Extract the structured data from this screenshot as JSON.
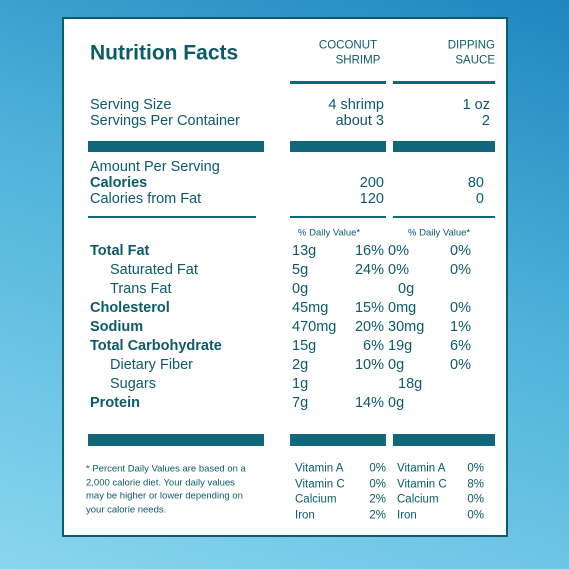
{
  "title": "Nutrition Facts",
  "columns": [
    {
      "line1": "COCONUT",
      "line2": "SHRIMP"
    },
    {
      "line1": "DIPPING",
      "line2": "SAUCE"
    }
  ],
  "servings": [
    {
      "label": "Serving Size",
      "shrimp": "4 shrimp",
      "sauce": "1 oz"
    },
    {
      "label": "Servings Per Container",
      "shrimp": "about 3",
      "sauce": "2"
    }
  ],
  "amount_header": "Amount Per Serving",
  "calories": [
    {
      "label": "Calories",
      "bold": true,
      "shrimp": "200",
      "sauce": "80"
    },
    {
      "label": "Calories from Fat",
      "bold": false,
      "shrimp": "120",
      "sauce": "0"
    }
  ],
  "daily_value_header": [
    "% Daily Value*",
    "% Daily Value*"
  ],
  "nutrients": [
    {
      "label": "Total Fat",
      "bold": true,
      "indent": false,
      "shrimp": [
        "13g",
        "16%"
      ],
      "sauce": [
        "0%",
        "0%"
      ]
    },
    {
      "label": "Saturated Fat",
      "bold": false,
      "indent": true,
      "shrimp": [
        "5g",
        "24%"
      ],
      "sauce": [
        "0%",
        "0%"
      ]
    },
    {
      "label": "Trans Fat",
      "bold": false,
      "indent": true,
      "shrimp": [
        "0g"
      ],
      "sauce": [
        "0g"
      ]
    },
    {
      "label": "Cholesterol",
      "bold": true,
      "indent": false,
      "shrimp": [
        "45mg",
        "15%"
      ],
      "sauce": [
        "0mg",
        "0%"
      ]
    },
    {
      "label": "Sodium",
      "bold": true,
      "indent": false,
      "shrimp": [
        "470mg",
        "20%"
      ],
      "sauce": [
        "30mg",
        "1%"
      ]
    },
    {
      "label": "Total Carbohydrate",
      "bold": true,
      "indent": false,
      "shrimp": [
        "15g",
        "6%"
      ],
      "sauce": [
        "19g",
        "6%"
      ]
    },
    {
      "label": "Dietary Fiber",
      "bold": false,
      "indent": true,
      "shrimp": [
        "2g",
        "10%"
      ],
      "sauce": [
        "0g",
        "0%"
      ]
    },
    {
      "label": "Sugars",
      "bold": false,
      "indent": true,
      "shrimp": [
        "1g"
      ],
      "sauce": [
        "18g"
      ]
    },
    {
      "label": "Protein",
      "bold": true,
      "indent": false,
      "shrimp": [
        "7g",
        "14%"
      ],
      "sauce": [
        "0g"
      ]
    }
  ],
  "footnote": [
    "* Percent Daily Values are based on a",
    "2,000 calorie diet. Your daily values",
    "may be higher or lower depending on",
    "your calorie needs."
  ],
  "vitamins": [
    {
      "shrimp": [
        "Vitamin A",
        "0%"
      ],
      "sauce": [
        "Vitamin A",
        "0%"
      ]
    },
    {
      "shrimp": [
        "Vitamin C",
        "0%"
      ],
      "sauce": [
        "Vitamin C",
        "8%"
      ]
    },
    {
      "shrimp": [
        "Calcium",
        "2%"
      ],
      "sauce": [
        "Calcium",
        "0%"
      ]
    },
    {
      "shrimp": [
        "Iron",
        "2%"
      ],
      "sauce": [
        "Iron",
        "0%"
      ]
    }
  ]
}
